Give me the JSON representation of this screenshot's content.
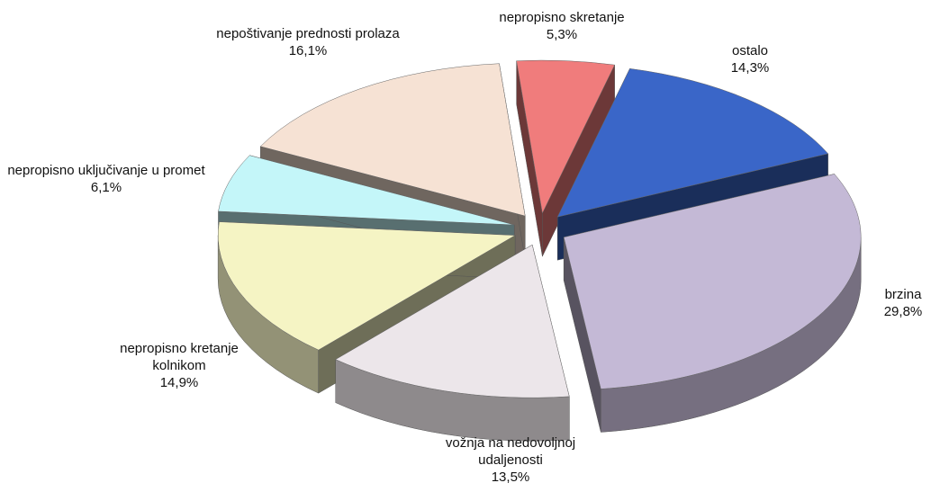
{
  "chart_data": {
    "type": "pie3d",
    "categories": [
      "nepropisno skretanje",
      "ostalo",
      "brzina",
      "vožnja na nedovoljnoj udaljenosti",
      "nepropisno kretanje kolnikom",
      "nepropisno uključivanje u promet",
      "nepoštivanje prednosti prolaza"
    ],
    "values": [
      5.3,
      14.3,
      29.8,
      13.5,
      14.9,
      6.1,
      16.1
    ],
    "value_labels": [
      "5,3%",
      "14,3%",
      "29,8%",
      "13,5%",
      "14,9%",
      "6,1%",
      "16,1%"
    ],
    "colors": [
      "#f07c7c",
      "#3a66c8",
      "#c4b9d6",
      "#ece6ea",
      "#f5f4c4",
      "#c4f6f9",
      "#f6e2d4"
    ]
  }
}
